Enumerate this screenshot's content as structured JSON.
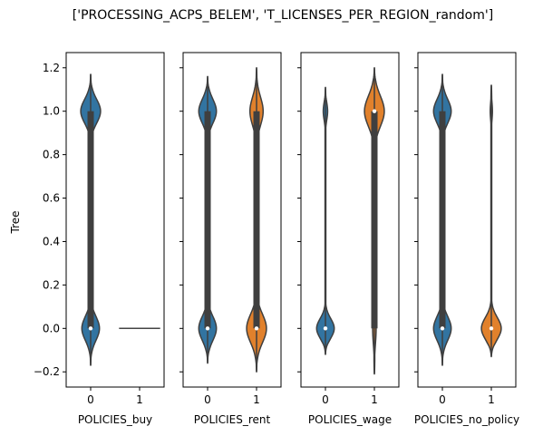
{
  "chart_data": {
    "type": "violin",
    "title": "['PROCESSING_ACPS_BELEM', 'T_LICENSES_PER_REGION_random']",
    "ylabel": "Tree",
    "ylim": [
      -0.27,
      1.27
    ],
    "yticks": [
      -0.2,
      0.0,
      0.2,
      0.4,
      0.6,
      0.8,
      1.0,
      1.2
    ],
    "ytick_labels": [
      "−0.2",
      "0.0",
      "0.2",
      "0.4",
      "0.6",
      "0.8",
      "1.0",
      "1.2"
    ],
    "colors": {
      "0": "#3274a1",
      "1": "#e1812c"
    },
    "panels": [
      {
        "xlabel": "POLICIES_buy",
        "categories": [
          "0",
          "1"
        ],
        "violins": [
          {
            "category": "0",
            "min": -0.17,
            "max": 1.17,
            "q1": 0.0,
            "median": 0.0,
            "q3": 1.0,
            "w0": 0.4,
            "w1": 0.45,
            "s0": 0.055,
            "s1": 0.055
          },
          {
            "category": "1",
            "degenerate": true,
            "value": 0.0
          }
        ]
      },
      {
        "xlabel": "POLICIES_rent",
        "categories": [
          "0",
          "1"
        ],
        "violins": [
          {
            "category": "0",
            "min": -0.16,
            "max": 1.16,
            "q1": 0.0,
            "median": 0.0,
            "q3": 1.0,
            "w0": 0.4,
            "w1": 0.4,
            "s0": 0.055,
            "s1": 0.055
          },
          {
            "category": "1",
            "min": -0.2,
            "max": 1.2,
            "q1": 0.0,
            "median": 0.0,
            "q3": 1.0,
            "w0": 0.45,
            "w1": 0.3,
            "s0": 0.065,
            "s1": 0.065
          }
        ]
      },
      {
        "xlabel": "POLICIES_wage",
        "categories": [
          "0",
          "1"
        ],
        "violins": [
          {
            "category": "0",
            "min": -0.12,
            "max": 1.11,
            "q1": 0.0,
            "median": 0.0,
            "q3": 0.0,
            "w0": 0.4,
            "w1": 0.1,
            "s0": 0.045,
            "s1": 0.04
          },
          {
            "category": "1",
            "min": -0.21,
            "max": 1.2,
            "q1": 0.0,
            "median": 1.0,
            "q3": 1.0,
            "w0": 0.08,
            "w1": 0.45,
            "s0": 0.07,
            "s1": 0.07
          }
        ]
      },
      {
        "xlabel": "POLICIES_no_policy",
        "categories": [
          "0",
          "1"
        ],
        "violins": [
          {
            "category": "0",
            "min": -0.17,
            "max": 1.17,
            "q1": 0.0,
            "median": 0.0,
            "q3": 1.0,
            "w0": 0.4,
            "w1": 0.4,
            "s0": 0.055,
            "s1": 0.055
          },
          {
            "category": "1",
            "min": -0.13,
            "max": 1.12,
            "q1": 0.0,
            "median": 0.0,
            "q3": 0.0,
            "w0": 0.45,
            "w1": 0.05,
            "s0": 0.05,
            "s1": 0.04
          }
        ]
      }
    ]
  }
}
